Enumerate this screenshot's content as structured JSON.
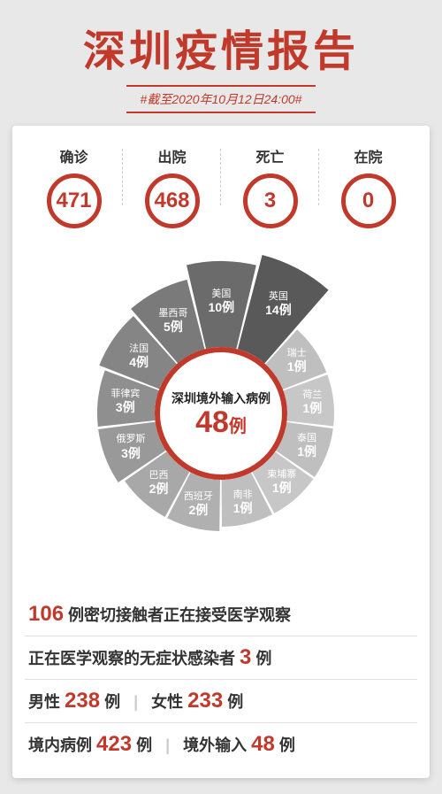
{
  "colors": {
    "accent": "#c1392b",
    "dark": "#4a4a4a",
    "light_grey": "#bfbfbf",
    "text": "#333333",
    "bg": "#ffffff"
  },
  "header": {
    "title": "深圳疫情报告",
    "subtitle": "#截至2020年10月12日24:00#"
  },
  "stats": [
    {
      "label": "确诊",
      "value": "471"
    },
    {
      "label": "出院",
      "value": "468"
    },
    {
      "label": "死亡",
      "value": "3"
    },
    {
      "label": "在院",
      "value": "0"
    }
  ],
  "pie": {
    "center_line1": "深圳境外输入病例",
    "center_value": "48",
    "center_unit": "例",
    "inner_radius": 75,
    "base_outer_radius": 130,
    "slices": [
      {
        "country": "英国",
        "count": 14,
        "color": "#595959",
        "radius": 185,
        "label_r": 139
      },
      {
        "country": "瑞士",
        "count": 1,
        "color": "#bfbfbf",
        "radius": 128,
        "label_r": 104
      },
      {
        "country": "荷兰",
        "count": 1,
        "color": "#c7c7c7",
        "radius": 128,
        "label_r": 104
      },
      {
        "country": "泰国",
        "count": 1,
        "color": "#bfbfbf",
        "radius": 128,
        "label_r": 104
      },
      {
        "country": "柬埔寨",
        "count": 1,
        "color": "#c7c7c7",
        "radius": 128,
        "label_r": 104
      },
      {
        "country": "南非",
        "count": 1,
        "color": "#bfbfbf",
        "radius": 128,
        "label_r": 104
      },
      {
        "country": "西班牙",
        "count": 2,
        "color": "#b0b0b0",
        "radius": 133,
        "label_r": 106
      },
      {
        "country": "巴西",
        "count": 2,
        "color": "#a8a8a8",
        "radius": 133,
        "label_r": 106
      },
      {
        "country": "俄罗斯",
        "count": 3,
        "color": "#999999",
        "radius": 140,
        "label_r": 109
      },
      {
        "country": "菲律宾",
        "count": 3,
        "color": "#8f8f8f",
        "radius": 140,
        "label_r": 109
      },
      {
        "country": "法国",
        "count": 4,
        "color": "#858585",
        "radius": 148,
        "label_r": 113
      },
      {
        "country": "墨西哥",
        "count": 5,
        "color": "#7a7a7a",
        "radius": 156,
        "label_r": 117
      },
      {
        "country": "美国",
        "count": 10,
        "color": "#6b6b6b",
        "radius": 172,
        "label_r": 126
      }
    ],
    "start_angle_deg": -76
  },
  "rows": {
    "r1_num": "106",
    "r1_txt": " 例密切接触者正在接受医学观察",
    "r2_txt_a": "正在医学观察的无症状感染者 ",
    "r2_num": "3",
    "r2_txt_b": " 例",
    "r3a_lbl": "男性 ",
    "r3a_num": "238",
    "r3a_unit": " 例",
    "r3b_lbl": "女性 ",
    "r3b_num": "233",
    "r3b_unit": " 例",
    "r4a_lbl": "境内病例 ",
    "r4a_num": "423",
    "r4a_unit": " 例",
    "r4b_lbl": "境外输入 ",
    "r4b_num": "48",
    "r4b_unit": " 例"
  }
}
